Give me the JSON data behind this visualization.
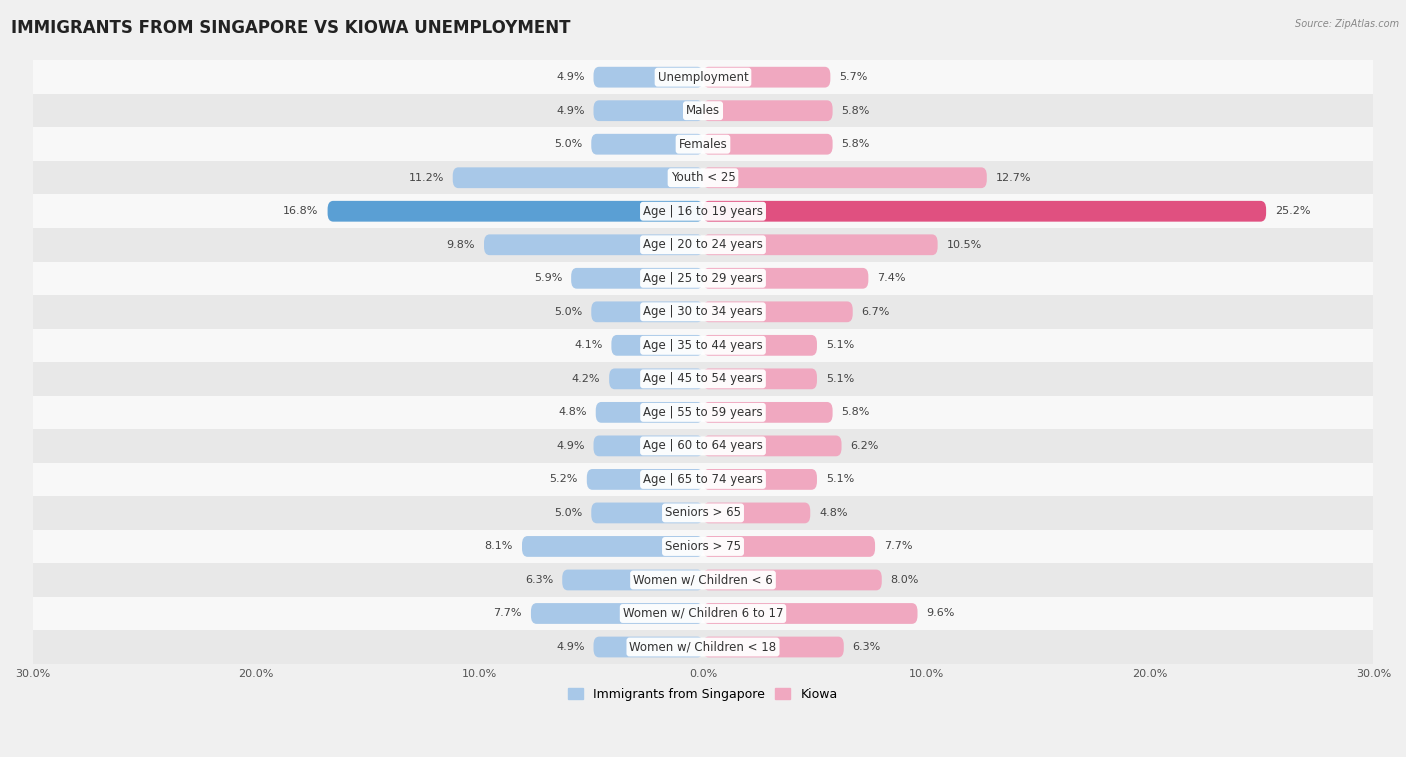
{
  "title": "IMMIGRANTS FROM SINGAPORE VS KIOWA UNEMPLOYMENT",
  "source": "Source: ZipAtlas.com",
  "categories": [
    "Unemployment",
    "Males",
    "Females",
    "Youth < 25",
    "Age | 16 to 19 years",
    "Age | 20 to 24 years",
    "Age | 25 to 29 years",
    "Age | 30 to 34 years",
    "Age | 35 to 44 years",
    "Age | 45 to 54 years",
    "Age | 55 to 59 years",
    "Age | 60 to 64 years",
    "Age | 65 to 74 years",
    "Seniors > 65",
    "Seniors > 75",
    "Women w/ Children < 6",
    "Women w/ Children 6 to 17",
    "Women w/ Children < 18"
  ],
  "left_values": [
    4.9,
    4.9,
    5.0,
    11.2,
    16.8,
    9.8,
    5.9,
    5.0,
    4.1,
    4.2,
    4.8,
    4.9,
    5.2,
    5.0,
    8.1,
    6.3,
    7.7,
    4.9
  ],
  "right_values": [
    5.7,
    5.8,
    5.8,
    12.7,
    25.2,
    10.5,
    7.4,
    6.7,
    5.1,
    5.1,
    5.8,
    6.2,
    5.1,
    4.8,
    7.7,
    8.0,
    9.6,
    6.3
  ],
  "left_color": "#a8c8e8",
  "right_color": "#f0a8c0",
  "left_highlight_color": "#5a9fd4",
  "right_highlight_color": "#e05080",
  "highlight_index": 4,
  "axis_max": 30.0,
  "left_label": "Immigrants from Singapore",
  "right_label": "Kiowa",
  "bg_color": "#f0f0f0",
  "row_color_even": "#f8f8f8",
  "row_color_odd": "#e8e8e8",
  "bar_height": 0.62,
  "title_fontsize": 12,
  "label_fontsize": 8.5,
  "value_fontsize": 8,
  "tick_fontsize": 8
}
